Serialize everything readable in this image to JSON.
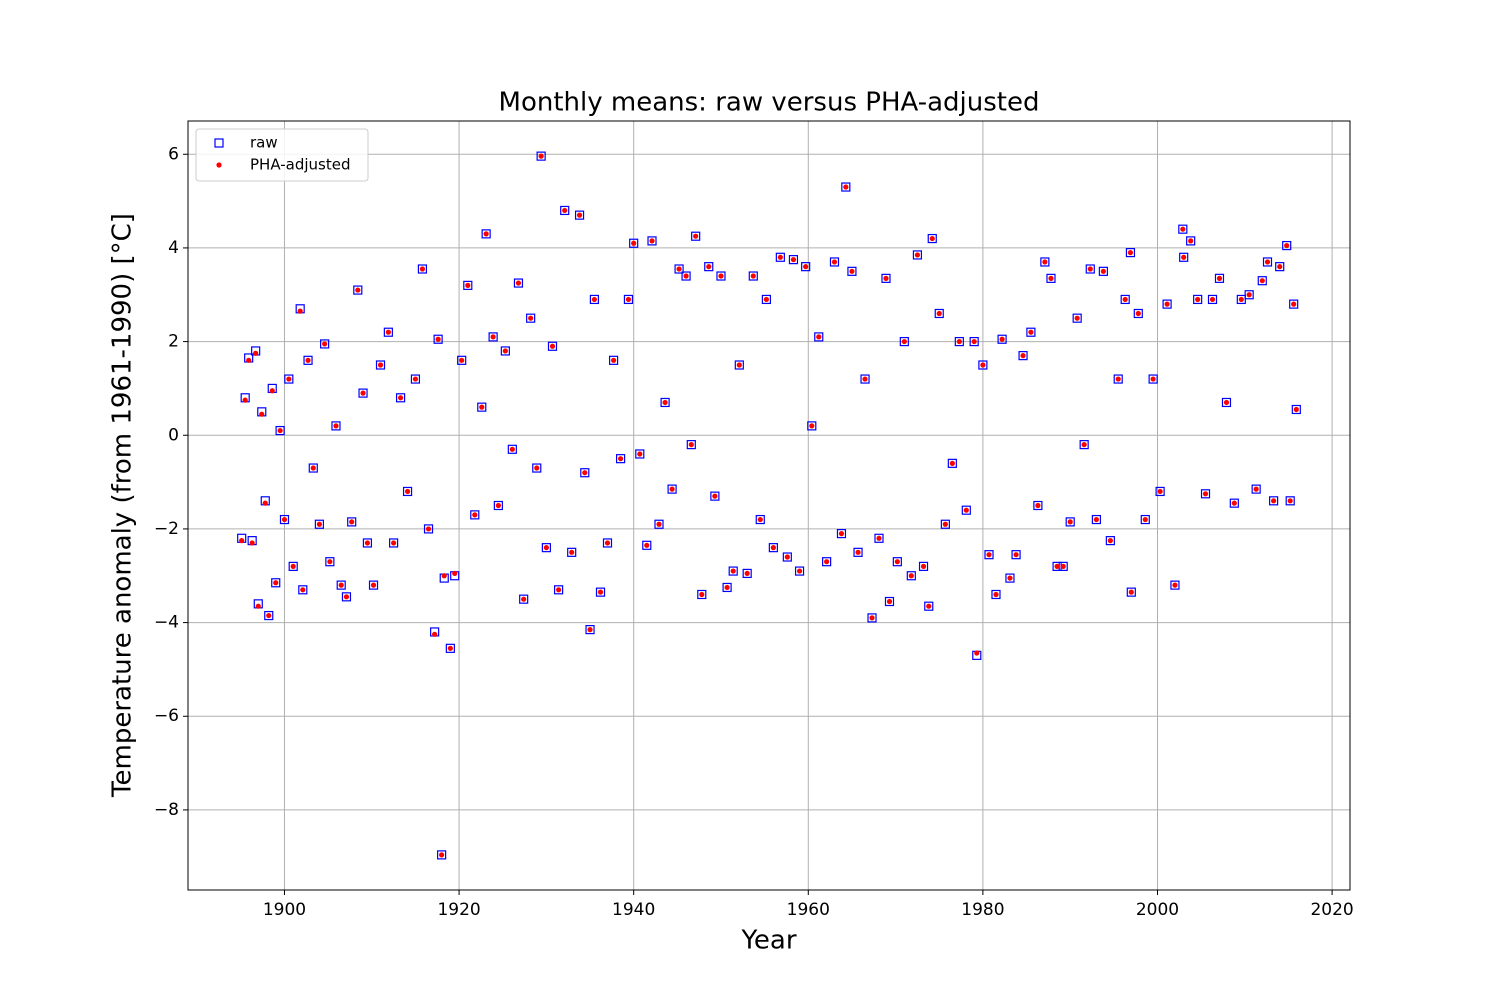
{
  "chart_data": {
    "type": "scatter",
    "title": "Monthly means: raw versus PHA-adjusted",
    "xlabel": "Year",
    "ylabel": "Temperature anomaly (from 1961-1990) [°C]",
    "x": [
      1895.1,
      1895.5,
      1895.9,
      1896.3,
      1896.7,
      1897.0,
      1897.4,
      1897.8,
      1898.2,
      1898.6,
      1899.0,
      1899.5,
      1900.0,
      1900.5,
      1901.0,
      1901.8,
      1902.1,
      1902.7,
      1903.3,
      1904.0,
      1904.6,
      1905.2,
      1905.9,
      1906.5,
      1907.1,
      1907.7,
      1908.4,
      1909.0,
      1909.5,
      1910.2,
      1911.0,
      1911.9,
      1912.5,
      1913.3,
      1914.1,
      1915.0,
      1915.8,
      1916.5,
      1917.2,
      1917.6,
      1918.0,
      1918.3,
      1919.0,
      1919.5,
      1920.3,
      1921.0,
      1921.8,
      1922.6,
      1923.1,
      1923.9,
      1924.5,
      1925.3,
      1926.1,
      1926.8,
      1927.4,
      1928.2,
      1928.9,
      1929.4,
      1930.0,
      1930.7,
      1931.4,
      1932.1,
      1932.9,
      1933.8,
      1934.4,
      1935.0,
      1935.5,
      1936.2,
      1937.0,
      1937.7,
      1938.5,
      1939.4,
      1940.0,
      1940.7,
      1941.5,
      1942.1,
      1942.9,
      1943.6,
      1944.4,
      1945.2,
      1946.0,
      1946.6,
      1947.1,
      1947.8,
      1948.6,
      1949.3,
      1950.0,
      1950.7,
      1951.4,
      1952.1,
      1953.0,
      1953.7,
      1954.5,
      1955.2,
      1956.0,
      1956.8,
      1957.6,
      1958.3,
      1959.0,
      1959.7,
      1960.4,
      1961.2,
      1962.1,
      1963.0,
      1963.8,
      1964.3,
      1965.0,
      1965.7,
      1966.5,
      1967.3,
      1968.1,
      1968.9,
      1969.3,
      1970.2,
      1971.0,
      1971.8,
      1972.5,
      1973.2,
      1973.8,
      1974.2,
      1975.0,
      1975.7,
      1976.5,
      1977.3,
      1978.1,
      1979.0,
      1979.3,
      1980.0,
      1980.7,
      1981.5,
      1982.2,
      1983.1,
      1983.8,
      1984.6,
      1985.5,
      1986.3,
      1987.1,
      1987.8,
      1988.5,
      1989.2,
      1990.0,
      1990.8,
      1991.6,
      1992.3,
      1993.0,
      1993.8,
      1994.6,
      1995.5,
      1996.3,
      1996.9,
      1997.0,
      1997.8,
      1998.6,
      1999.5,
      2000.3,
      2001.1,
      2002.0,
      2002.9,
      2003.0,
      2003.8,
      2004.6,
      2005.5,
      2006.3,
      2007.1,
      2007.9,
      2008.8,
      2009.6,
      2010.5,
      2011.3,
      2012.0,
      2012.6,
      2013.3,
      2014.0,
      2014.8,
      2015.2,
      2015.6,
      2015.9
    ],
    "series": [
      {
        "name": "raw",
        "color": "blue",
        "marker": "square",
        "values": [
          -2.2,
          0.8,
          1.65,
          -2.25,
          1.8,
          -3.6,
          0.5,
          -1.4,
          -3.85,
          1.0,
          -3.15,
          0.1,
          -1.8,
          1.2,
          -2.8,
          2.7,
          -3.3,
          1.6,
          -0.7,
          -1.9,
          1.95,
          -2.7,
          0.2,
          -3.2,
          -3.45,
          -1.85,
          3.1,
          0.9,
          -2.3,
          -3.2,
          1.5,
          2.2,
          -2.3,
          0.8,
          -1.2,
          1.2,
          3.55,
          -2.0,
          -4.2,
          2.05,
          -8.96,
          -3.05,
          -4.55,
          -3.0,
          1.6,
          3.2,
          -1.7,
          0.6,
          4.3,
          2.1,
          -1.5,
          1.8,
          -0.3,
          3.25,
          -3.5,
          2.5,
          -0.7,
          5.96,
          -2.4,
          1.9,
          -3.3,
          4.8,
          -2.5,
          4.7,
          -0.8,
          -4.15,
          2.9,
          -3.35,
          -2.3,
          1.6,
          -0.5,
          2.9,
          4.1,
          -0.4,
          -2.35,
          4.15,
          -1.9,
          0.7,
          -1.15,
          3.55,
          3.4,
          -0.2,
          4.25,
          -3.4,
          3.6,
          -1.3,
          3.4,
          -3.25,
          -2.9,
          1.5,
          -2.95,
          3.4,
          -1.8,
          2.9,
          -2.4,
          3.8,
          -2.6,
          3.75,
          -2.9,
          3.6,
          0.2,
          2.1,
          -2.7,
          3.7,
          -2.1,
          5.3,
          3.5,
          -2.5,
          1.2,
          -3.9,
          -2.2,
          3.35,
          -3.55,
          -2.7,
          2.0,
          -3.0,
          3.85,
          -2.8,
          -3.65,
          4.2,
          2.6,
          -1.9,
          -0.6,
          2.0,
          -1.6,
          2.0,
          -4.7,
          1.5,
          -2.55,
          -3.4,
          2.05,
          -3.05,
          -2.55,
          1.7,
          2.2,
          -1.5,
          3.7,
          3.35,
          -2.8,
          -2.8,
          -1.85,
          2.5,
          -0.2,
          3.55,
          -1.8,
          3.5,
          -2.25,
          1.2,
          2.9,
          3.9,
          -3.35,
          2.6,
          -1.8,
          1.2,
          -1.2,
          2.8,
          -3.2,
          4.4,
          3.8,
          4.15,
          2.9,
          -1.25,
          2.9,
          3.35,
          0.7,
          -1.45,
          2.9,
          3.0,
          -1.15,
          3.3,
          3.7,
          -1.4,
          3.6,
          4.05,
          -1.4,
          2.8,
          0.55
        ]
      },
      {
        "name": "PHA-adjusted",
        "color": "red",
        "marker": "dot",
        "values": [
          -2.25,
          0.75,
          1.6,
          -2.3,
          1.75,
          -3.65,
          0.45,
          -1.45,
          -3.85,
          0.95,
          -3.15,
          0.1,
          -1.8,
          1.2,
          -2.8,
          2.65,
          -3.3,
          1.6,
          -0.7,
          -1.9,
          1.95,
          -2.7,
          0.2,
          -3.2,
          -3.45,
          -1.85,
          3.1,
          0.9,
          -2.3,
          -3.2,
          1.5,
          2.2,
          -2.3,
          0.8,
          -1.2,
          1.2,
          3.55,
          -2.0,
          -4.25,
          2.05,
          -8.96,
          -3.0,
          -4.55,
          -2.95,
          1.6,
          3.2,
          -1.7,
          0.6,
          4.3,
          2.1,
          -1.5,
          1.8,
          -0.3,
          3.25,
          -3.5,
          2.5,
          -0.7,
          5.96,
          -2.4,
          1.9,
          -3.3,
          4.8,
          -2.5,
          4.7,
          -0.8,
          -4.15,
          2.9,
          -3.35,
          -2.3,
          1.6,
          -0.5,
          2.9,
          4.1,
          -0.4,
          -2.35,
          4.15,
          -1.9,
          0.7,
          -1.15,
          3.55,
          3.4,
          -0.2,
          4.25,
          -3.4,
          3.6,
          -1.3,
          3.4,
          -3.25,
          -2.9,
          1.5,
          -2.95,
          3.4,
          -1.8,
          2.9,
          -2.4,
          3.8,
          -2.6,
          3.75,
          -2.9,
          3.6,
          0.2,
          2.1,
          -2.7,
          3.7,
          -2.1,
          5.3,
          3.5,
          -2.5,
          1.2,
          -3.9,
          -2.2,
          3.35,
          -3.55,
          -2.7,
          2.0,
          -3.0,
          3.85,
          -2.8,
          -3.65,
          4.2,
          2.6,
          -1.9,
          -0.6,
          2.0,
          -1.6,
          2.0,
          -4.65,
          1.5,
          -2.55,
          -3.4,
          2.05,
          -3.05,
          -2.55,
          1.7,
          2.2,
          -1.5,
          3.7,
          3.35,
          -2.8,
          -2.8,
          -1.85,
          2.5,
          -0.2,
          3.55,
          -1.8,
          3.5,
          -2.25,
          1.2,
          2.9,
          3.9,
          -3.35,
          2.6,
          -1.8,
          1.2,
          -1.2,
          2.8,
          -3.2,
          4.4,
          3.8,
          4.15,
          2.9,
          -1.25,
          2.9,
          3.35,
          0.7,
          -1.45,
          2.9,
          3.0,
          -1.15,
          3.3,
          3.7,
          -1.4,
          3.6,
          4.05,
          -1.4,
          2.8,
          0.55
        ]
      }
    ],
    "xlim": [
      1888.95,
      2022.05
    ],
    "ylim": [
      -9.71,
      6.71
    ],
    "xticks": [
      1900,
      1920,
      1940,
      1960,
      1980,
      2000,
      2020
    ],
    "yticks": [
      {
        "value": -8,
        "label": "−8"
      },
      {
        "value": -6,
        "label": "−6"
      },
      {
        "value": -4,
        "label": "−4"
      },
      {
        "value": -2,
        "label": "−2"
      },
      0,
      2,
      4,
      6
    ],
    "grid": true,
    "legend": "upper left"
  }
}
